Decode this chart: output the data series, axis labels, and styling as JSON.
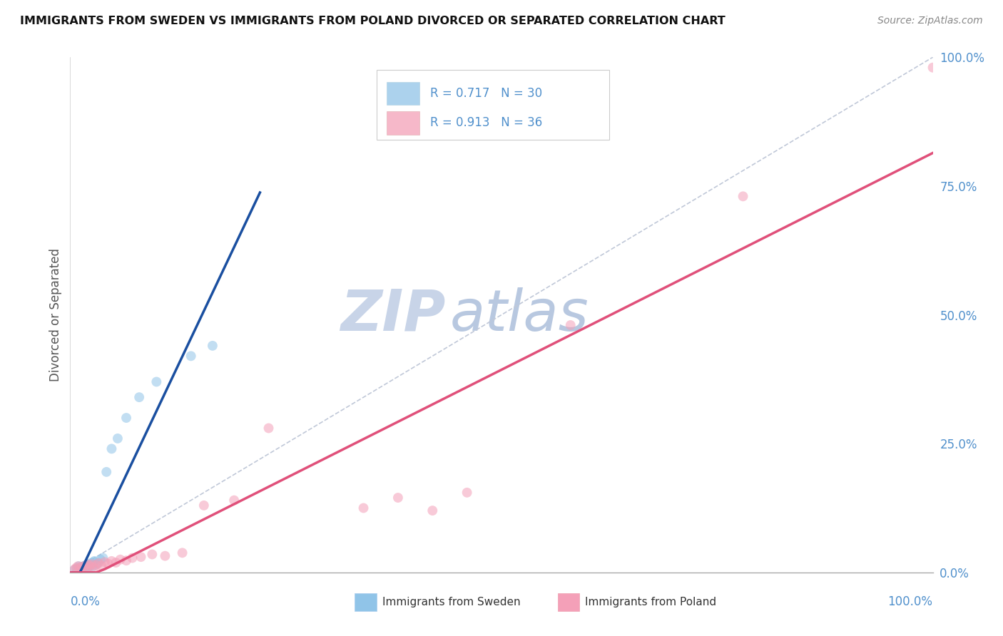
{
  "title": "IMMIGRANTS FROM SWEDEN VS IMMIGRANTS FROM POLAND DIVORCED OR SEPARATED CORRELATION CHART",
  "source_text": "Source: ZipAtlas.com",
  "ylabel": "Divorced or Separated",
  "sweden_R": 0.717,
  "sweden_N": 30,
  "poland_R": 0.913,
  "poland_N": 36,
  "sweden_color": "#90c4e8",
  "poland_color": "#f4a0b8",
  "sweden_line_color": "#1a4fa0",
  "poland_line_color": "#e0507a",
  "ref_line_color": "#c0c8d8",
  "grid_color": "#d8dde8",
  "watermark_zip_color": "#c8d4e8",
  "watermark_atlas_color": "#b8c8e0",
  "right_tick_color": "#5090cc",
  "xlim": [
    0.0,
    1.0
  ],
  "ylim": [
    0.0,
    1.0
  ],
  "right_yticks": [
    0.0,
    0.25,
    0.5,
    0.75,
    1.0
  ],
  "right_yticklabels": [
    "0.0%",
    "25.0%",
    "50.0%",
    "75.0%",
    "100.0%"
  ],
  "marker_size": 100,
  "alpha": 0.55,
  "sweden_x": [
    0.005,
    0.008,
    0.01,
    0.012,
    0.013,
    0.015,
    0.016,
    0.017,
    0.018,
    0.019,
    0.02,
    0.021,
    0.022,
    0.023,
    0.024,
    0.025,
    0.027,
    0.028,
    0.03,
    0.032,
    0.035,
    0.038,
    0.042,
    0.048,
    0.055,
    0.065,
    0.08,
    0.1,
    0.14,
    0.165
  ],
  "sweden_y": [
    0.005,
    0.008,
    0.012,
    0.006,
    0.01,
    0.007,
    0.009,
    0.013,
    0.011,
    0.015,
    0.008,
    0.014,
    0.016,
    0.012,
    0.018,
    0.01,
    0.02,
    0.022,
    0.015,
    0.018,
    0.025,
    0.028,
    0.195,
    0.24,
    0.26,
    0.3,
    0.34,
    0.37,
    0.42,
    0.44
  ],
  "poland_x": [
    0.005,
    0.007,
    0.009,
    0.011,
    0.013,
    0.015,
    0.017,
    0.019,
    0.021,
    0.023,
    0.025,
    0.027,
    0.03,
    0.033,
    0.036,
    0.04,
    0.044,
    0.048,
    0.053,
    0.058,
    0.065,
    0.072,
    0.082,
    0.095,
    0.11,
    0.13,
    0.155,
    0.19,
    0.23,
    0.34,
    0.38,
    0.42,
    0.46,
    0.58,
    0.78,
    1.0
  ],
  "poland_y": [
    0.006,
    0.009,
    0.012,
    0.008,
    0.011,
    0.007,
    0.013,
    0.01,
    0.015,
    0.012,
    0.016,
    0.009,
    0.014,
    0.018,
    0.013,
    0.02,
    0.017,
    0.022,
    0.019,
    0.025,
    0.023,
    0.028,
    0.03,
    0.035,
    0.032,
    0.038,
    0.13,
    0.14,
    0.28,
    0.125,
    0.145,
    0.12,
    0.155,
    0.48,
    0.73,
    0.98
  ]
}
